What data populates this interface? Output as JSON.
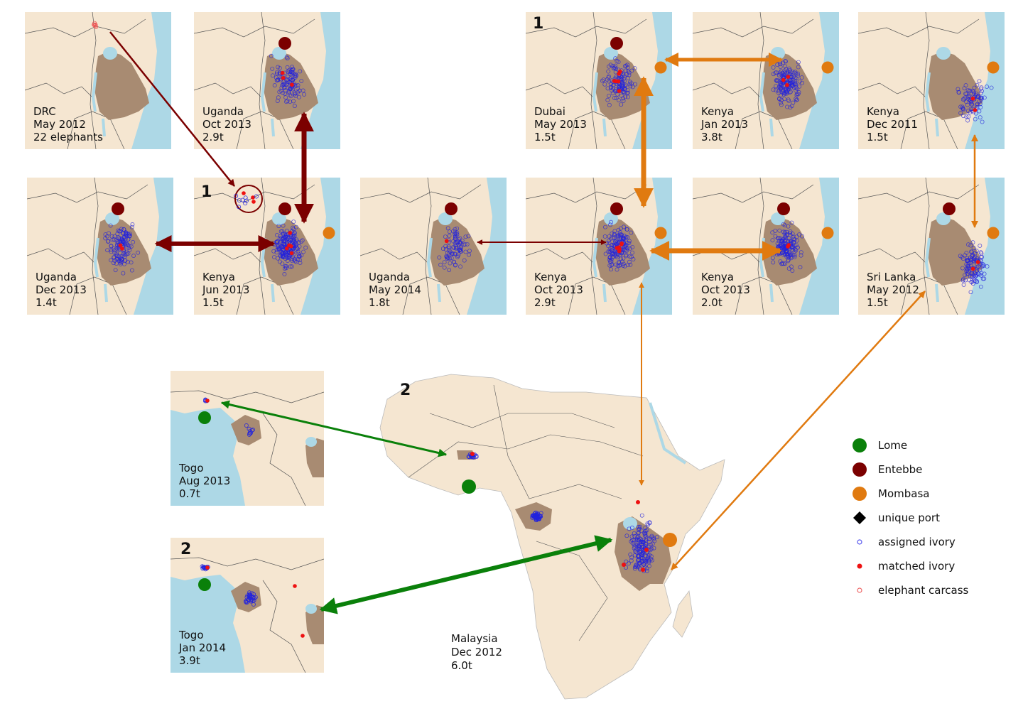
{
  "colors": {
    "land": "#f5e6d1",
    "tanzania": "#a88b72",
    "water": "#add8e6",
    "border": "#555555",
    "lome": "#0a800a",
    "entebbe": "#7b0000",
    "mombasa": "#e07a10",
    "assigned": "#2222dd",
    "matched": "#ee1111",
    "carcass": "#ee5555"
  },
  "panels": [
    {
      "id": "drc",
      "lines": [
        "DRC",
        "May 2012",
        "22 elephants"
      ]
    },
    {
      "id": "uganda-oct-2013",
      "lines": [
        "Uganda",
        "Oct 2013",
        "2.9t"
      ]
    },
    {
      "id": "dubai-may-2013",
      "lines": [
        "Dubai",
        "May 2013",
        "1.5t"
      ],
      "number": "1"
    },
    {
      "id": "kenya-jan-2013",
      "lines": [
        "Kenya",
        "Jan 2013",
        "3.8t"
      ]
    },
    {
      "id": "kenya-dec-2011",
      "lines": [
        "Kenya",
        "Dec 2011",
        "1.5t"
      ]
    },
    {
      "id": "uganda-dec-2013",
      "lines": [
        "Uganda",
        "Dec 2013",
        "1.4t"
      ]
    },
    {
      "id": "kenya-jun-2013",
      "lines": [
        "Kenya",
        "Jun 2013",
        "1.5t"
      ],
      "number": "1"
    },
    {
      "id": "uganda-may-2014",
      "lines": [
        "Uganda",
        "May 2014",
        "1.8t"
      ]
    },
    {
      "id": "kenya-oct-2013-a",
      "lines": [
        "Kenya",
        "Oct 2013",
        "2.9t"
      ]
    },
    {
      "id": "kenya-oct-2013-b",
      "lines": [
        "Kenya",
        "Oct 2013",
        "2.0t"
      ]
    },
    {
      "id": "sri-lanka-may-2012",
      "lines": [
        "Sri Lanka",
        "May 2012",
        "1.5t"
      ]
    },
    {
      "id": "togo-aug-2013",
      "lines": [
        "Togo",
        "Aug 2013",
        "0.7t"
      ]
    },
    {
      "id": "togo-jan-2014",
      "lines": [
        "Togo",
        "Jan 2014",
        "3.9t"
      ],
      "number": "2"
    }
  ],
  "africa": {
    "lines": [
      "Malaysia",
      "Dec 2012",
      "6.0t"
    ],
    "number": "2"
  },
  "legend": [
    {
      "label": "Lome",
      "symbol": "lome"
    },
    {
      "label": "Entebbe",
      "symbol": "entebbe"
    },
    {
      "label": "Mombasa",
      "symbol": "mombasa"
    },
    {
      "label": "unique port",
      "symbol": "diamond"
    },
    {
      "label": "assigned ivory",
      "symbol": "assigned"
    },
    {
      "label": "matched ivory",
      "symbol": "matched"
    },
    {
      "label": "elephant carcass",
      "symbol": "carcass"
    }
  ]
}
